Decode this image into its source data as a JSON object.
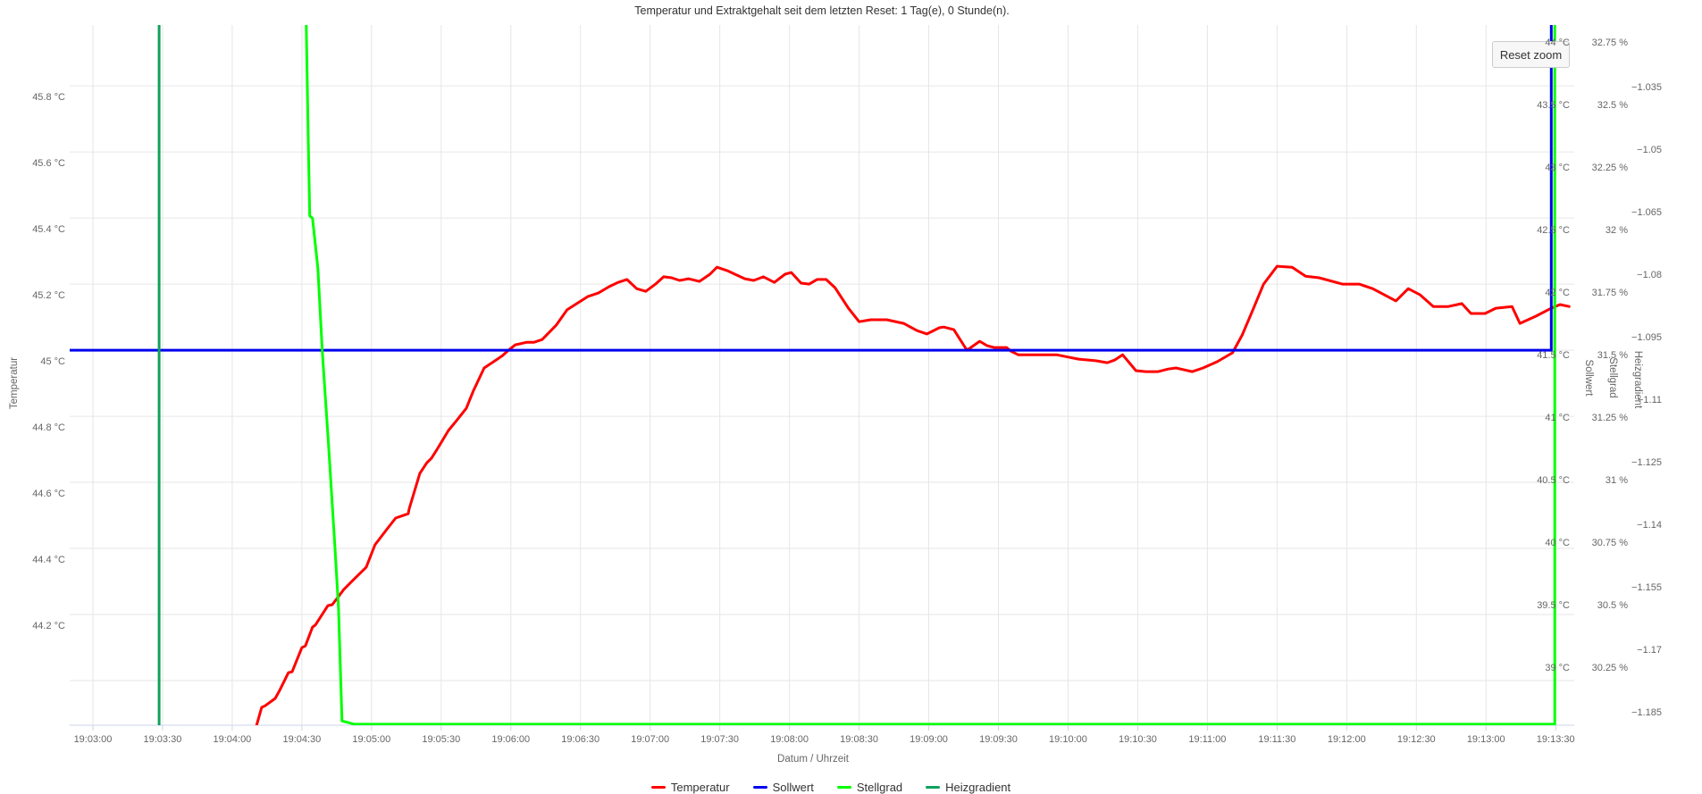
{
  "title": "Temperatur und Extraktgehalt seit dem letzten Reset: 1 Tag(e), 0 Stunde(n).",
  "reset_zoom_label": "Reset zoom",
  "chart_data": {
    "type": "line",
    "title": "Temperatur und Extraktgehalt seit dem letzten Reset: 1 Tag(e), 0 Stunde(n).",
    "xlabel": "Datum / Uhrzeit",
    "grid": true,
    "legend_position": "bottom",
    "axes": {
      "x": {
        "title": "Datum / Uhrzeit",
        "tick_labels": [
          "19:03:00",
          "19:03:30",
          "19:04:00",
          "19:04:30",
          "19:05:00",
          "19:05:30",
          "19:06:00",
          "19:06:30",
          "19:07:00",
          "19:07:30",
          "19:08:00",
          "19:08:30",
          "19:09:00",
          "19:09:30",
          "19:10:00",
          "19:10:30",
          "19:11:00",
          "19:11:30",
          "19:12:00",
          "19:12:30",
          "19:13:00",
          "19:13:30"
        ],
        "tick_interval_seconds": 30,
        "range_seconds": [
          -10,
          638
        ]
      },
      "temperatur": {
        "title": "Temperatur",
        "unit": "°C",
        "side": "left",
        "range": [
          43.865,
          45.984
        ],
        "ticks": [
          45.8,
          45.6,
          45.4,
          45.2,
          45,
          44.8,
          44.6,
          44.4,
          44.2
        ],
        "grid_values": [
          45.8,
          45.6,
          45.4,
          45.2,
          45,
          44.8,
          44.6,
          44.4,
          44.2,
          44
        ]
      },
      "sollwert": {
        "title": "Sollwert",
        "unit": "°C",
        "side": "right",
        "range": [
          38.486,
          44.086
        ],
        "ticks": [
          44,
          43.5,
          43,
          42.5,
          42,
          41.5,
          41,
          40.5,
          40,
          39.5,
          39
        ]
      },
      "stellgrad": {
        "title": "Stellgrad",
        "unit": "%",
        "side": "right",
        "range": [
          29.993,
          32.793
        ],
        "ticks": [
          32.75,
          32.5,
          32.25,
          32,
          31.75,
          31.5,
          31.25,
          31,
          30.75,
          30.5,
          30.25
        ]
      },
      "heizgradient": {
        "title": "Heizgradient",
        "unit": "",
        "side": "right",
        "range": [
          -1.188,
          -1.02
        ],
        "ticks": [
          -1.035,
          -1.05,
          -1.065,
          -1.08,
          -1.095,
          -1.11,
          -1.125,
          -1.14,
          -1.155,
          -1.17,
          -1.185
        ]
      }
    },
    "series": [
      {
        "name": "Temperatur",
        "color": "#ff0000",
        "axis": "temperatur",
        "points": [
          [
            70.4,
            43.862
          ],
          [
            72.7,
            43.919
          ],
          [
            74.2,
            43.924
          ],
          [
            78.5,
            43.946
          ],
          [
            80.4,
            43.97
          ],
          [
            84.2,
            44.024
          ],
          [
            85.8,
            44.027
          ],
          [
            90,
            44.1
          ],
          [
            91.5,
            44.105
          ],
          [
            94.6,
            44.162
          ],
          [
            95.8,
            44.168
          ],
          [
            101.2,
            44.227
          ],
          [
            103.1,
            44.23
          ],
          [
            108.1,
            44.276
          ],
          [
            111.9,
            44.303
          ],
          [
            117.7,
            44.343
          ],
          [
            121.5,
            44.411
          ],
          [
            126.5,
            44.457
          ],
          [
            130.4,
            44.492
          ],
          [
            135.8,
            44.505
          ],
          [
            136.2,
            44.519
          ],
          [
            140.8,
            44.627
          ],
          [
            143.8,
            44.659
          ],
          [
            145.8,
            44.673
          ],
          [
            148.5,
            44.703
          ],
          [
            153.1,
            44.757
          ],
          [
            156.9,
            44.789
          ],
          [
            160.8,
            44.824
          ],
          [
            163.8,
            44.876
          ],
          [
            168.5,
            44.946
          ],
          [
            174.2,
            44.973
          ],
          [
            176.5,
            44.984
          ],
          [
            178.5,
            44.997
          ],
          [
            181.9,
            45.016
          ],
          [
            186.9,
            45.024
          ],
          [
            190,
            45.024
          ],
          [
            193.5,
            45.032
          ],
          [
            199.6,
            45.076
          ],
          [
            204.2,
            45.122
          ],
          [
            208.8,
            45.143
          ],
          [
            213.1,
            45.162
          ],
          [
            217.7,
            45.173
          ],
          [
            222.3,
            45.192
          ],
          [
            226.2,
            45.205
          ],
          [
            230,
            45.214
          ],
          [
            234.2,
            45.186
          ],
          [
            238.1,
            45.178
          ],
          [
            242.3,
            45.2
          ],
          [
            245.8,
            45.222
          ],
          [
            249.2,
            45.219
          ],
          [
            252.7,
            45.211
          ],
          [
            256.5,
            45.216
          ],
          [
            261.2,
            45.208
          ],
          [
            265.8,
            45.23
          ],
          [
            268.8,
            45.251
          ],
          [
            273.1,
            45.241
          ],
          [
            276.5,
            45.23
          ],
          [
            280.8,
            45.216
          ],
          [
            284.6,
            45.211
          ],
          [
            288.8,
            45.222
          ],
          [
            293.5,
            45.205
          ],
          [
            298.1,
            45.23
          ],
          [
            300.8,
            45.235
          ],
          [
            305,
            45.203
          ],
          [
            308.5,
            45.2
          ],
          [
            311.9,
            45.214
          ],
          [
            315.8,
            45.214
          ],
          [
            319.6,
            45.189
          ],
          [
            325.4,
            45.127
          ],
          [
            330,
            45.086
          ],
          [
            335,
            45.092
          ],
          [
            341.9,
            45.092
          ],
          [
            349.2,
            45.081
          ],
          [
            355,
            45.059
          ],
          [
            359.2,
            45.049
          ],
          [
            364.6,
            45.068
          ],
          [
            366.5,
            45.07
          ],
          [
            370.8,
            45.062
          ],
          [
            375.4,
            45.011
          ],
          [
            376.5,
            45
          ],
          [
            381.9,
            45.027
          ],
          [
            385,
            45.014
          ],
          [
            388.1,
            45.008
          ],
          [
            393.5,
            45.008
          ],
          [
            395.4,
            44.997
          ],
          [
            398.5,
            44.986
          ],
          [
            405,
            44.986
          ],
          [
            415,
            44.986
          ],
          [
            420.8,
            44.978
          ],
          [
            424.6,
            44.973
          ],
          [
            431.9,
            44.968
          ],
          [
            436.9,
            44.962
          ],
          [
            440,
            44.97
          ],
          [
            443.5,
            44.986
          ],
          [
            449.2,
            44.938
          ],
          [
            453.5,
            44.935
          ],
          [
            458.8,
            44.935
          ],
          [
            463.1,
            44.943
          ],
          [
            466.5,
            44.946
          ],
          [
            468.5,
            44.943
          ],
          [
            473.5,
            44.935
          ],
          [
            478.1,
            44.946
          ],
          [
            484.2,
            44.965
          ],
          [
            490.8,
            44.992
          ],
          [
            495,
            45.046
          ],
          [
            499.6,
            45.122
          ],
          [
            504.2,
            45.2
          ],
          [
            510,
            45.254
          ],
          [
            516.5,
            45.251
          ],
          [
            522.3,
            45.224
          ],
          [
            528.1,
            45.219
          ],
          [
            538.1,
            45.2
          ],
          [
            545.4,
            45.2
          ],
          [
            551.2,
            45.186
          ],
          [
            561.2,
            45.149
          ],
          [
            566.5,
            45.186
          ],
          [
            571.5,
            45.168
          ],
          [
            577.3,
            45.132
          ],
          [
            583.8,
            45.132
          ],
          [
            589.6,
            45.141
          ],
          [
            593.5,
            45.111
          ],
          [
            599.6,
            45.111
          ],
          [
            604.2,
            45.127
          ],
          [
            611.2,
            45.132
          ],
          [
            614.6,
            45.081
          ],
          [
            621.5,
            45.103
          ],
          [
            628.1,
            45.127
          ],
          [
            631.9,
            45.138
          ],
          [
            635.8,
            45.132
          ]
        ]
      },
      {
        "name": "Sollwert",
        "color": "#0000ee",
        "axis": "temperatur",
        "points": [
          [
            -10,
            45.0
          ],
          [
            628.1,
            45.0
          ],
          [
            628.1,
            45.984
          ]
        ]
      },
      {
        "name": "Stellgrad",
        "color": "#00ff00",
        "axis": "stellgrad",
        "points": [
          [
            91.9,
            32.79
          ],
          [
            92.7,
            32.36
          ],
          [
            93.4,
            32.03
          ],
          [
            94.6,
            32.02
          ],
          [
            96.9,
            31.82
          ],
          [
            98.8,
            31.49
          ],
          [
            101.5,
            31.11
          ],
          [
            104.2,
            30.71
          ],
          [
            105.8,
            30.46
          ],
          [
            107.3,
            30.01
          ],
          [
            112.7,
            29.997
          ],
          [
            629.6,
            29.997
          ],
          [
            629.6,
            32.79
          ]
        ]
      },
      {
        "name": "Heizgradient",
        "color": "#11a05c",
        "axis": "heizgradient",
        "points": [
          [
            28.5,
            -1.188
          ],
          [
            28.5,
            -1.02
          ]
        ]
      }
    ]
  }
}
